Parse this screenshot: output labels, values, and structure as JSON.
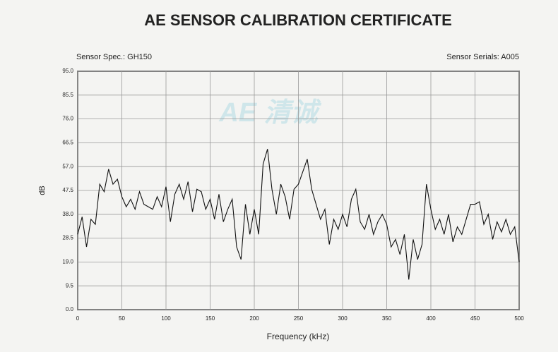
{
  "chart_data": {
    "type": "line",
    "title": "AE SENSOR CALIBRATION CERTIFICATE",
    "spec": "Sensor Spec.: GH150",
    "serials": "Sensor Serials: A005",
    "watermark": "AE 清诚",
    "xlabel": "Frequency (kHz)",
    "ylabel": "dB",
    "color": "#111111",
    "grid": true,
    "xlim": [
      0,
      500
    ],
    "ylim": [
      0,
      95
    ],
    "xticks": [
      0,
      50,
      100,
      150,
      200,
      250,
      300,
      350,
      400,
      450,
      500
    ],
    "yticks": [
      {
        "value": 0,
        "label": "0.0"
      },
      9.5,
      {
        "value": 19,
        "label": "19.0"
      },
      28.5,
      {
        "value": 38,
        "label": "38.0"
      },
      47.5,
      {
        "value": 57,
        "label": "57.0"
      },
      66.5,
      {
        "value": 76,
        "label": "76.0"
      },
      85.5,
      {
        "value": 95,
        "label": "95.0"
      }
    ],
    "x": [
      0,
      5,
      10,
      15,
      20,
      25,
      30,
      35,
      40,
      45,
      50,
      55,
      60,
      65,
      70,
      75,
      80,
      85,
      90,
      95,
      100,
      105,
      110,
      115,
      120,
      125,
      130,
      135,
      140,
      145,
      150,
      155,
      160,
      165,
      170,
      175,
      180,
      185,
      190,
      195,
      200,
      205,
      210,
      215,
      220,
      225,
      230,
      235,
      240,
      245,
      250,
      255,
      260,
      265,
      270,
      275,
      280,
      285,
      290,
      295,
      300,
      305,
      310,
      315,
      320,
      325,
      330,
      335,
      340,
      345,
      350,
      355,
      360,
      365,
      370,
      375,
      380,
      385,
      390,
      395,
      400,
      405,
      410,
      415,
      420,
      425,
      430,
      435,
      440,
      445,
      450,
      455,
      460,
      465,
      470,
      475,
      480,
      485,
      490,
      495,
      500
    ],
    "values": [
      30,
      37,
      25,
      36,
      34,
      50,
      47,
      56,
      50,
      52,
      45,
      41,
      44,
      40,
      47,
      42,
      41,
      40,
      45,
      41,
      49,
      35,
      46,
      50,
      44,
      51,
      39,
      48,
      47,
      40,
      44,
      36,
      46,
      35,
      40,
      44,
      25,
      20,
      42,
      30,
      40,
      30,
      58,
      64,
      48,
      38,
      50,
      45,
      36,
      48,
      50,
      55,
      60,
      48,
      42,
      36,
      40,
      26,
      36,
      32,
      38,
      33,
      44,
      48,
      35,
      32,
      38,
      30,
      35,
      38,
      34,
      25,
      28,
      22,
      30,
      12,
      28,
      20,
      26,
      50,
      40,
      32,
      36,
      30,
      38,
      27,
      33,
      30,
      36,
      42,
      42,
      43,
      34,
      38,
      28,
      35,
      31,
      36,
      30,
      33,
      19
    ]
  }
}
